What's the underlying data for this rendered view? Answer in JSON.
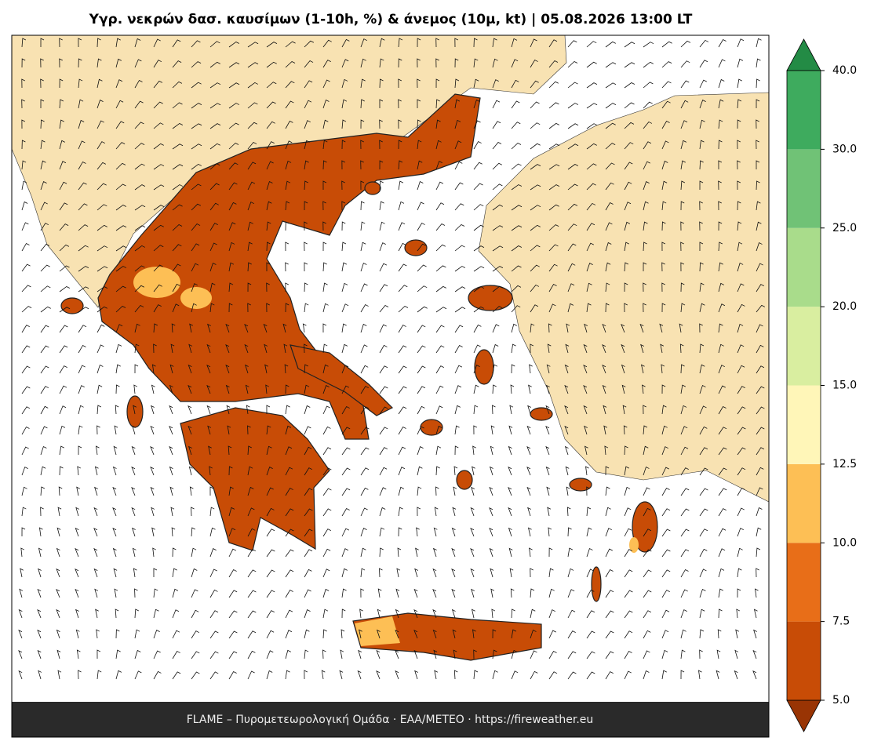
{
  "title": "Υγρ. νεκρών δασ. καυσίμων (1-10h, %) & άνεμος (10μ, kt)  |  05.08.2026 13:00 LT",
  "footer": "FLAME – Πυρομετεωρολογική Ομάδα · ΕΑΑ/METEO · https://fireweather.eu",
  "colorbar": {
    "ticks": [
      {
        "value": 5,
        "label": "5.0"
      },
      7.5,
      {
        "value": 10,
        "label": "10.0"
      },
      12.5,
      {
        "value": 15,
        "label": "15.0"
      },
      {
        "value": 20,
        "label": "20.0"
      },
      {
        "value": 25,
        "label": "25.0"
      },
      {
        "value": 30,
        "label": "30.0"
      },
      {
        "value": 40,
        "label": "40.0"
      }
    ],
    "colors": [
      "#c84c06",
      "#e86e18",
      "#fdbf55",
      "#fff6b8",
      "#d9eea0",
      "#a9dc8b",
      "#70c276",
      "#3eab5e"
    ],
    "under_color": "#993404",
    "over_color": "#238b45"
  }
}
